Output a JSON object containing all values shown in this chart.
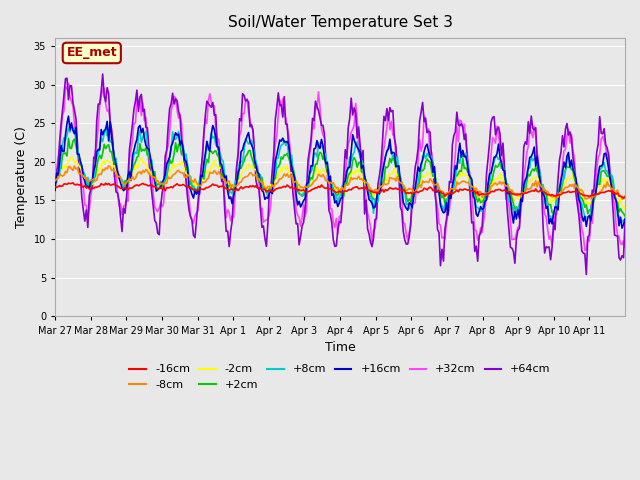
{
  "title": "Soil/Water Temperature Set 3",
  "xlabel": "Time",
  "ylabel": "Temperature (C)",
  "ylim": [
    0,
    36
  ],
  "yticks": [
    0,
    5,
    10,
    15,
    20,
    25,
    30,
    35
  ],
  "background_color": "#e8e8e8",
  "annotation_text": "EE_met",
  "annotation_color": "#aa0000",
  "annotation_bg": "#ffffcc",
  "annotation_border": "#aa0000",
  "x_labels": [
    "Mar 27",
    "Mar 28",
    "Mar 29",
    "Mar 30",
    "Mar 31",
    "Apr 1",
    "Apr 2",
    "Apr 3",
    "Apr 4",
    "Apr 5",
    "Apr 6",
    "Apr 7",
    "Apr 8",
    "Apr 9",
    "Apr 10",
    "Apr 11"
  ],
  "legend_entries": [
    "-16cm",
    "-8cm",
    "-2cm",
    "+2cm",
    "+8cm",
    "+16cm",
    "+32cm",
    "+64cm"
  ],
  "legend_colors": [
    "#ff0000",
    "#ff8800",
    "#ffff00",
    "#00cc00",
    "#00cccc",
    "#0000cc",
    "#ff44ff",
    "#8800cc"
  ],
  "series_colors": {
    "-16cm": "#ff0000",
    "-8cm": "#ff8800",
    "-2cm": "#ffff00",
    "+2cm": "#00cc00",
    "+8cm": "#00cccc",
    "+16cm": "#0000cc",
    "+32cm": "#ff44ff",
    "+64cm": "#8800cc"
  }
}
